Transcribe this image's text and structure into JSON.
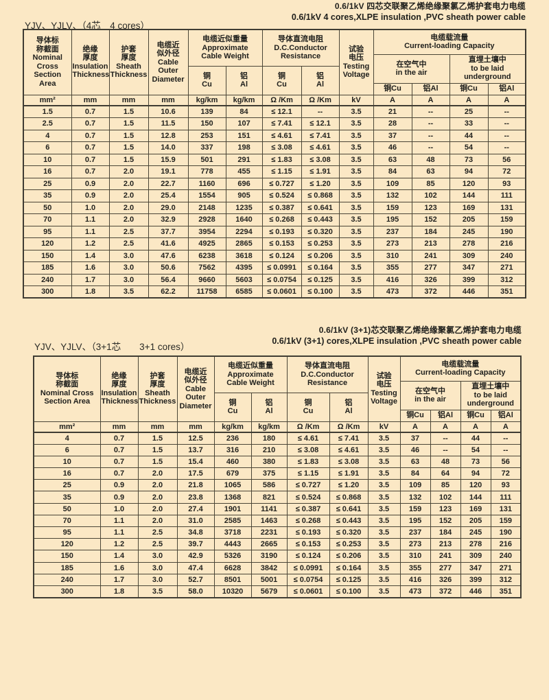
{
  "colors": {
    "page_background": "#fbe8c5",
    "grid_line": "#4a4536",
    "text": "#20201d"
  },
  "table1": {
    "title_zh": "0.6/1kV 四芯交联聚乙烯绝缘聚氯乙烯护套电力电缆",
    "title_en": "0.6/1kV 4 cores,XLPE insulation ,PVC sheath power cable",
    "model_label": "YJV、YJLV、（4芯　4 cores）",
    "header": {
      "col_area": "导体标\n称截面\nNominal\nCross\nSection Area",
      "col_insulation": "绝缘\n厚度\nInsulation\nThickness",
      "col_sheath": "护套\n厚度\nSheath\nThickness",
      "col_diameter": "电缆近\n似外径\nCable\nOuter\nDiameter",
      "grp_weight": "电缆近似重量\nApproximate\nCable Weight",
      "grp_resistance": "导体直流电阻\nD.C.Conductor\nResistance",
      "col_voltage": "试验\n电压\nTesting\nVoltage",
      "grp_capacity": "电缆载流量\nCurrent-loading Capacity",
      "grp_air": "在空气中\nin the air",
      "grp_underground": "直埋土壤中\nto be laid\nunderground",
      "sub_cu": "铜\nCu",
      "sub_al": "铝\nAl",
      "sub_cu_inline": "铜Cu",
      "sub_al_inline": "铝Al",
      "units": [
        "mm²",
        "mm",
        "mm",
        "mm",
        "kg/km",
        "kg/km",
        "Ω /Km",
        "Ω /Km",
        "kV",
        "A",
        "A",
        "A",
        "A"
      ]
    },
    "rows": [
      [
        "1.5",
        "0.7",
        "1.5",
        "10.6",
        "139",
        "84",
        "≤ 12.1",
        "--",
        "3.5",
        "21",
        "--",
        "25",
        "--"
      ],
      [
        "2.5",
        "0.7",
        "1.5",
        "11.5",
        "150",
        "107",
        "≤ 7.41",
        "≤ 12.1",
        "3.5",
        "28",
        "--",
        "33",
        "--"
      ],
      [
        "4",
        "0.7",
        "1.5",
        "12.8",
        "253",
        "151",
        "≤ 4.61",
        "≤ 7.41",
        "3.5",
        "37",
        "--",
        "44",
        "--"
      ],
      [
        "6",
        "0.7",
        "1.5",
        "14.0",
        "337",
        "198",
        "≤ 3.08",
        "≤ 4.61",
        "3.5",
        "46",
        "--",
        "54",
        "--"
      ],
      [
        "10",
        "0.7",
        "1.5",
        "15.9",
        "501",
        "291",
        "≤ 1.83",
        "≤ 3.08",
        "3.5",
        "63",
        "48",
        "73",
        "56"
      ],
      [
        "16",
        "0.7",
        "2.0",
        "19.1",
        "778",
        "455",
        "≤ 1.15",
        "≤ 1.91",
        "3.5",
        "84",
        "63",
        "94",
        "72"
      ],
      [
        "25",
        "0.9",
        "2.0",
        "22.7",
        "1160",
        "696",
        "≤ 0.727",
        "≤ 1.20",
        "3.5",
        "109",
        "85",
        "120",
        "93"
      ],
      [
        "35",
        "0.9",
        "2.0",
        "25.4",
        "1554",
        "905",
        "≤ 0.524",
        "≤ 0.868",
        "3.5",
        "132",
        "102",
        "144",
        "111"
      ],
      [
        "50",
        "1.0",
        "2.0",
        "29.0",
        "2148",
        "1235",
        "≤ 0.387",
        "≤ 0.641",
        "3.5",
        "159",
        "123",
        "169",
        "131"
      ],
      [
        "70",
        "1.1",
        "2.0",
        "32.9",
        "2928",
        "1640",
        "≤ 0.268",
        "≤ 0.443",
        "3.5",
        "195",
        "152",
        "205",
        "159"
      ],
      [
        "95",
        "1.1",
        "2.5",
        "37.7",
        "3954",
        "2294",
        "≤ 0.193",
        "≤ 0.320",
        "3.5",
        "237",
        "184",
        "245",
        "190"
      ],
      [
        "120",
        "1.2",
        "2.5",
        "41.6",
        "4925",
        "2865",
        "≤ 0.153",
        "≤ 0.253",
        "3.5",
        "273",
        "213",
        "278",
        "216"
      ],
      [
        "150",
        "1.4",
        "3.0",
        "47.6",
        "6238",
        "3618",
        "≤ 0.124",
        "≤ 0.206",
        "3.5",
        "310",
        "241",
        "309",
        "240"
      ],
      [
        "185",
        "1.6",
        "3.0",
        "50.6",
        "7562",
        "4395",
        "≤ 0.0991",
        "≤ 0.164",
        "3.5",
        "355",
        "277",
        "347",
        "271"
      ],
      [
        "240",
        "1.7",
        "3.0",
        "56.4",
        "9660",
        "5603",
        "≤ 0.0754",
        "≤ 0.125",
        "3.5",
        "416",
        "326",
        "399",
        "312"
      ],
      [
        "300",
        "1.8",
        "3.5",
        "62.2",
        "11758",
        "6585",
        "≤ 0.0601",
        "≤ 0.100",
        "3.5",
        "473",
        "372",
        "446",
        "351"
      ]
    ]
  },
  "table2": {
    "title_zh": "0.6/1kV (3+1)芯交联聚乙烯绝缘聚氯乙烯护套电力电缆",
    "title_en": "0.6/1kV (3+1) cores,XLPE insulation ,PVC sheath power cable",
    "model_label": "YJV、YJLV、（3+1芯　　3+1 cores）",
    "header": {
      "col_area": "导体标\n称截面\nNominal Cross\nSection Area",
      "col_insulation": "绝缘\n厚度\nInsulation\nThickness",
      "col_sheath": "护套\n厚度\nSheath\nThickness",
      "col_diameter": "电缆近\n似外径\nCable\nOuter\nDiameter",
      "grp_weight": "电缆近似重量\nApproximate\nCable Weight",
      "grp_resistance": "导体直流电阻\nD.C.Conductor\nResistance",
      "col_voltage": "试验\n电压\nTesting\nVoltage",
      "grp_capacity": "电缆载流量\nCurrent-loading Capacity",
      "grp_air": "在空气中\nin the air",
      "grp_underground": "直埋土壤中\nto be laid\nunderground",
      "sub_cu": "铜\nCu",
      "sub_al": "铝\nAl",
      "sub_cu_inline": "铜Cu",
      "sub_al_inline": "铝Al",
      "units": [
        "mm²",
        "mm",
        "mm",
        "mm",
        "kg/km",
        "kg/km",
        "Ω /Km",
        "Ω /Km",
        "kV",
        "A",
        "A",
        "A",
        "A"
      ]
    },
    "rows": [
      [
        "4",
        "0.7",
        "1.5",
        "12.5",
        "236",
        "180",
        "≤ 4.61",
        "≤ 7.41",
        "3.5",
        "37",
        "--",
        "44",
        "--"
      ],
      [
        "6",
        "0.7",
        "1.5",
        "13.7",
        "316",
        "210",
        "≤ 3.08",
        "≤ 4.61",
        "3.5",
        "46",
        "--",
        "54",
        "--"
      ],
      [
        "10",
        "0.7",
        "1.5",
        "15.4",
        "460",
        "380",
        "≤ 1.83",
        "≤ 3.08",
        "3.5",
        "63",
        "48",
        "73",
        "56"
      ],
      [
        "16",
        "0.7",
        "2.0",
        "17.5",
        "679",
        "375",
        "≤ 1.15",
        "≤ 1.91",
        "3.5",
        "84",
        "64",
        "94",
        "72"
      ],
      [
        "25",
        "0.9",
        "2.0",
        "21.8",
        "1065",
        "586",
        "≤ 0.727",
        "≤ 1.20",
        "3.5",
        "109",
        "85",
        "120",
        "93"
      ],
      [
        "35",
        "0.9",
        "2.0",
        "23.8",
        "1368",
        "821",
        "≤ 0.524",
        "≤ 0.868",
        "3.5",
        "132",
        "102",
        "144",
        "111"
      ],
      [
        "50",
        "1.0",
        "2.0",
        "27.4",
        "1901",
        "1141",
        "≤ 0.387",
        "≤ 0.641",
        "3.5",
        "159",
        "123",
        "169",
        "131"
      ],
      [
        "70",
        "1.1",
        "2.0",
        "31.0",
        "2585",
        "1463",
        "≤ 0.268",
        "≤ 0.443",
        "3.5",
        "195",
        "152",
        "205",
        "159"
      ],
      [
        "95",
        "1.1",
        "2.5",
        "34.8",
        "3718",
        "2231",
        "≤ 0.193",
        "≤ 0.320",
        "3.5",
        "237",
        "184",
        "245",
        "190"
      ],
      [
        "120",
        "1.2",
        "2.5",
        "39.7",
        "4443",
        "2665",
        "≤ 0.153",
        "≤ 0.253",
        "3.5",
        "273",
        "213",
        "278",
        "216"
      ],
      [
        "150",
        "1.4",
        "3.0",
        "42.9",
        "5326",
        "3190",
        "≤ 0.124",
        "≤ 0.206",
        "3.5",
        "310",
        "241",
        "309",
        "240"
      ],
      [
        "185",
        "1.6",
        "3.0",
        "47.4",
        "6628",
        "3842",
        "≤ 0.0991",
        "≤ 0.164",
        "3.5",
        "355",
        "277",
        "347",
        "271"
      ],
      [
        "240",
        "1.7",
        "3.0",
        "52.7",
        "8501",
        "5001",
        "≤ 0.0754",
        "≤ 0.125",
        "3.5",
        "416",
        "326",
        "399",
        "312"
      ],
      [
        "300",
        "1.8",
        "3.5",
        "58.0",
        "10320",
        "5679",
        "≤ 0.0601",
        "≤ 0.100",
        "3.5",
        "473",
        "372",
        "446",
        "351"
      ]
    ]
  }
}
